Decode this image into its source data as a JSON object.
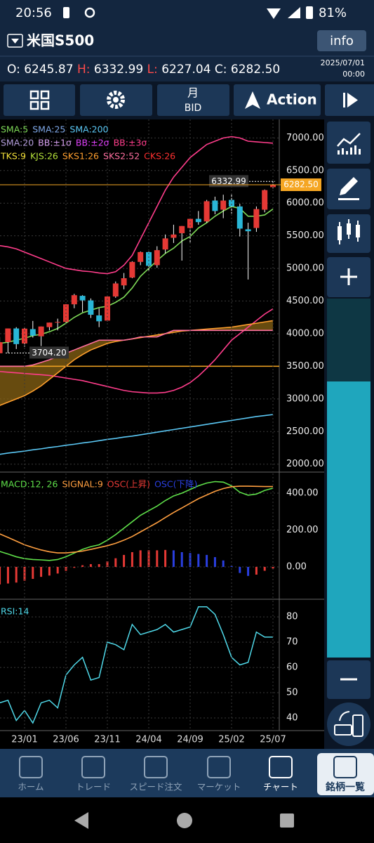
{
  "status_bar": {
    "time": "20:56",
    "battery": "81%"
  },
  "header": {
    "symbol": "米国S500",
    "info": "info"
  },
  "ohlc": {
    "o_label": "O:",
    "o": "6245.87",
    "h_label": "H:",
    "h": "6332.99",
    "l_label": "L:",
    "l": "6227.04",
    "c_label": "C:",
    "c": "6282.50",
    "date": "2025/07/01",
    "time": "00:00"
  },
  "toolbar": {
    "period": "月",
    "price_type": "BID",
    "action": "Action"
  },
  "chart": {
    "categories": [
      null,
      null,
      null,
      "23/01",
      null,
      null,
      null,
      null,
      "23/06",
      null,
      null,
      null,
      null,
      "23/11",
      null,
      null,
      null,
      null,
      "24/04",
      null,
      null,
      null,
      null,
      "24/09",
      null,
      null,
      null,
      null,
      "25/02",
      null,
      null,
      null,
      null,
      "25/07"
    ],
    "ylim": [
      1900,
      7230
    ],
    "yticks": [
      {
        "value": 2000,
        "label": "2000.00"
      },
      {
        "value": 2500,
        "label": "2500.00"
      },
      {
        "value": 3000,
        "label": "3000.00"
      },
      {
        "value": 3500,
        "label": "3500.00"
      },
      {
        "value": 4000,
        "label": "4000.00"
      },
      {
        "value": 4500,
        "label": "4500.00"
      },
      {
        "value": 5000,
        "label": "5000.00"
      },
      {
        "value": 5500,
        "label": "5500.00"
      },
      {
        "value": 6000,
        "label": "6000.00"
      },
      {
        "value": 6500,
        "label": "6500.00"
      },
      {
        "value": 7000,
        "label": "7000.00"
      }
    ],
    "grid": true,
    "candles": {
      "up_color": "#e53935",
      "down_color": "#29b6d6",
      "open": [
        3700,
        3870,
        4080,
        3850,
        4070,
        3960,
        4100,
        4170,
        4180,
        4450,
        4580,
        4510,
        4280,
        4200,
        4570,
        4740,
        4860,
        5100,
        5250,
        5050,
        5290,
        5470,
        5540,
        5620,
        5760,
        5720,
        6040,
        5900,
        6050,
        5950,
        5600,
        5620,
        5900,
        6245.87
      ],
      "high": [
        3950,
        4080,
        4100,
        4095,
        4195,
        4110,
        4170,
        4230,
        4450,
        4610,
        4590,
        4540,
        4390,
        4590,
        4800,
        4930,
        5110,
        5260,
        5260,
        5340,
        5520,
        5670,
        5650,
        5770,
        5880,
        6050,
        6100,
        6130,
        6150,
        5990,
        5700,
        5950,
        6210,
        6332.99
      ],
      "low": [
        3750,
        3704.2,
        3765,
        3800,
        3940,
        3810,
        4050,
        4050,
        4170,
        4390,
        4330,
        4240,
        4100,
        4190,
        4550,
        4680,
        4850,
        5050,
        4950,
        5010,
        5230,
        5390,
        5120,
        5400,
        5670,
        5700,
        5830,
        5770,
        5840,
        5490,
        4830,
        5560,
        5860,
        6227.04
      ],
      "close": [
        3870,
        4080,
        3840,
        4077,
        3970,
        4110,
        4170,
        4180,
        4450,
        4590,
        4510,
        4290,
        4190,
        4570,
        4770,
        4850,
        5100,
        5250,
        5040,
        5280,
        5460,
        5520,
        5650,
        5760,
        5710,
        6030,
        5880,
        6040,
        5950,
        5610,
        5570,
        5910,
        6200,
        6282.5
      ]
    },
    "hline": {
      "value": 3500,
      "color": "#f5a623"
    },
    "cloud_color": "#8a6414",
    "high_label": "6332.99",
    "low_label": "3704.20",
    "price_label": "6282.50",
    "legend": [
      [
        {
          "name": "SMA:5",
          "color": "#7ed957",
          "values": [
            3850,
            3870,
            3900,
            3930,
            3970,
            3990,
            4030,
            4080,
            4160,
            4250,
            4320,
            4360,
            4400,
            4420,
            4480,
            4560,
            4700,
            4880,
            5000,
            5120,
            5230,
            5310,
            5420,
            5490,
            5620,
            5700,
            5800,
            5880,
            5950,
            5920,
            5800,
            5800,
            5820,
            5910
          ]
        },
        {
          "name": "SMA:25",
          "color": "#7fa8e8"
        },
        {
          "name": "SMA:200",
          "color": "#5bc8f5",
          "values": [
            2150,
            2170,
            2185,
            2200,
            2220,
            2235,
            2255,
            2270,
            2290,
            2305,
            2325,
            2340,
            2360,
            2380,
            2395,
            2415,
            2430,
            2450,
            2470,
            2490,
            2510,
            2530,
            2550,
            2570,
            2590,
            2610,
            2630,
            2650,
            2670,
            2690,
            2710,
            2730,
            2745,
            2760
          ]
        }
      ],
      [
        {
          "name": "SMA:20",
          "color": "#b39ddb"
        },
        {
          "name": "BB:±1σ",
          "color": "#d7a0f0"
        },
        {
          "name": "BB:±2σ",
          "color": "#e040fb"
        },
        {
          "name": "BB:±3σ",
          "color": "#ff3d8b",
          "values": [
            5350,
            5330,
            5300,
            5250,
            5200,
            5150,
            5100,
            5050,
            5000,
            4980,
            4960,
            4950,
            4930,
            4920,
            4950,
            5050,
            5200,
            5450,
            5700,
            5950,
            6200,
            6400,
            6550,
            6700,
            6800,
            6900,
            6950,
            7000,
            7020,
            7000,
            6950,
            6940,
            6930,
            6920
          ],
          "values_lower": [
            3420,
            3410,
            3400,
            3390,
            3380,
            3370,
            3360,
            3340,
            3320,
            3300,
            3280,
            3250,
            3220,
            3190,
            3160,
            3130,
            3110,
            3100,
            3090,
            3090,
            3100,
            3130,
            3180,
            3250,
            3350,
            3470,
            3600,
            3750,
            3900,
            4000,
            4100,
            4200,
            4300,
            4380
          ]
        }
      ],
      [
        {
          "name": "TKS:9",
          "color": "#f5e23a"
        },
        {
          "name": "KJS:26",
          "color": "#b5e23a"
        },
        {
          "name": "SKS1:26",
          "color": "#ff9f2e",
          "values": [
            2900,
            2950,
            3000,
            3050,
            3120,
            3200,
            3300,
            3400,
            3500,
            3600,
            3680,
            3750,
            3800,
            3850,
            3880,
            3900,
            3920,
            3940,
            3960,
            3980,
            4000,
            4020,
            4040,
            4050,
            4060,
            4070,
            4080,
            4090,
            4100,
            4120,
            4140,
            4160,
            4180,
            4200
          ]
        },
        {
          "name": "SKS2:52",
          "color": "#ff6fa0",
          "values": [
            3500,
            3500,
            3500,
            3500,
            3520,
            3560,
            3600,
            3650,
            3700,
            3750,
            3800,
            3850,
            3900,
            3900,
            3900,
            3900,
            3920,
            3950,
            3950,
            3950,
            4000,
            4050,
            4050,
            4050,
            4050,
            4050,
            4050,
            4050,
            4050,
            4050,
            4050,
            4050,
            4050,
            4050
          ]
        },
        {
          "name": "CKS:26",
          "color": "#ff3030"
        }
      ]
    ],
    "macd": {
      "ylim": [
        -164,
        503
      ],
      "yticks": [
        {
          "value": 0,
          "label": "0.00"
        },
        {
          "value": 200,
          "label": "200.00"
        },
        {
          "value": 400,
          "label": "400.00"
        }
      ],
      "legend": [
        {
          "name": "MACD:12, 26",
          "color": "#5fe04a",
          "values": [
            84,
            70,
            55,
            45,
            40,
            38,
            35,
            40,
            55,
            75,
            95,
            110,
            120,
            145,
            175,
            210,
            245,
            280,
            305,
            330,
            360,
            385,
            400,
            420,
            440,
            455,
            463,
            460,
            440,
            405,
            389,
            395,
            415,
            427
          ]
        },
        {
          "name": "SIGNAL:9",
          "color": "#ff9f40",
          "values": [
            179,
            160,
            140,
            120,
            105,
            92,
            82,
            76,
            76,
            80,
            86,
            95,
            105,
            115,
            128,
            145,
            165,
            190,
            215,
            240,
            268,
            295,
            320,
            345,
            370,
            390,
            410,
            425,
            435,
            438,
            438,
            437,
            436,
            436
          ]
        },
        {
          "name": "OSC(上昇)",
          "color": "#e53935"
        },
        {
          "name": "OSC(下降)",
          "color": "#2a3fe0"
        }
      ],
      "osc": [
        -95,
        -90,
        -85,
        -75,
        -65,
        -54,
        -47,
        -36,
        -21,
        -5,
        9,
        15,
        15,
        30,
        47,
        65,
        80,
        90,
        90,
        90,
        92,
        90,
        80,
        75,
        70,
        65,
        53,
        35,
        5,
        -33,
        -49,
        -42,
        -21,
        -9
      ]
    },
    "rsi": {
      "ylim": [
        35,
        85.6
      ],
      "yticks": [
        40,
        50,
        60,
        70,
        80
      ],
      "name": "RSI:14",
      "color": "#4fd8e8",
      "values": [
        46,
        47,
        39,
        43,
        38,
        46,
        47,
        44,
        57,
        61,
        64,
        55,
        56,
        70,
        69,
        67,
        77,
        73,
        74,
        75,
        77,
        74,
        75,
        76,
        84,
        84,
        81,
        73,
        64,
        61,
        62,
        74,
        72,
        72
      ]
    }
  },
  "bottom_nav": [
    "ホーム",
    "トレード",
    "スピード注文",
    "マーケット",
    "チャート",
    "銘柄一覧"
  ]
}
